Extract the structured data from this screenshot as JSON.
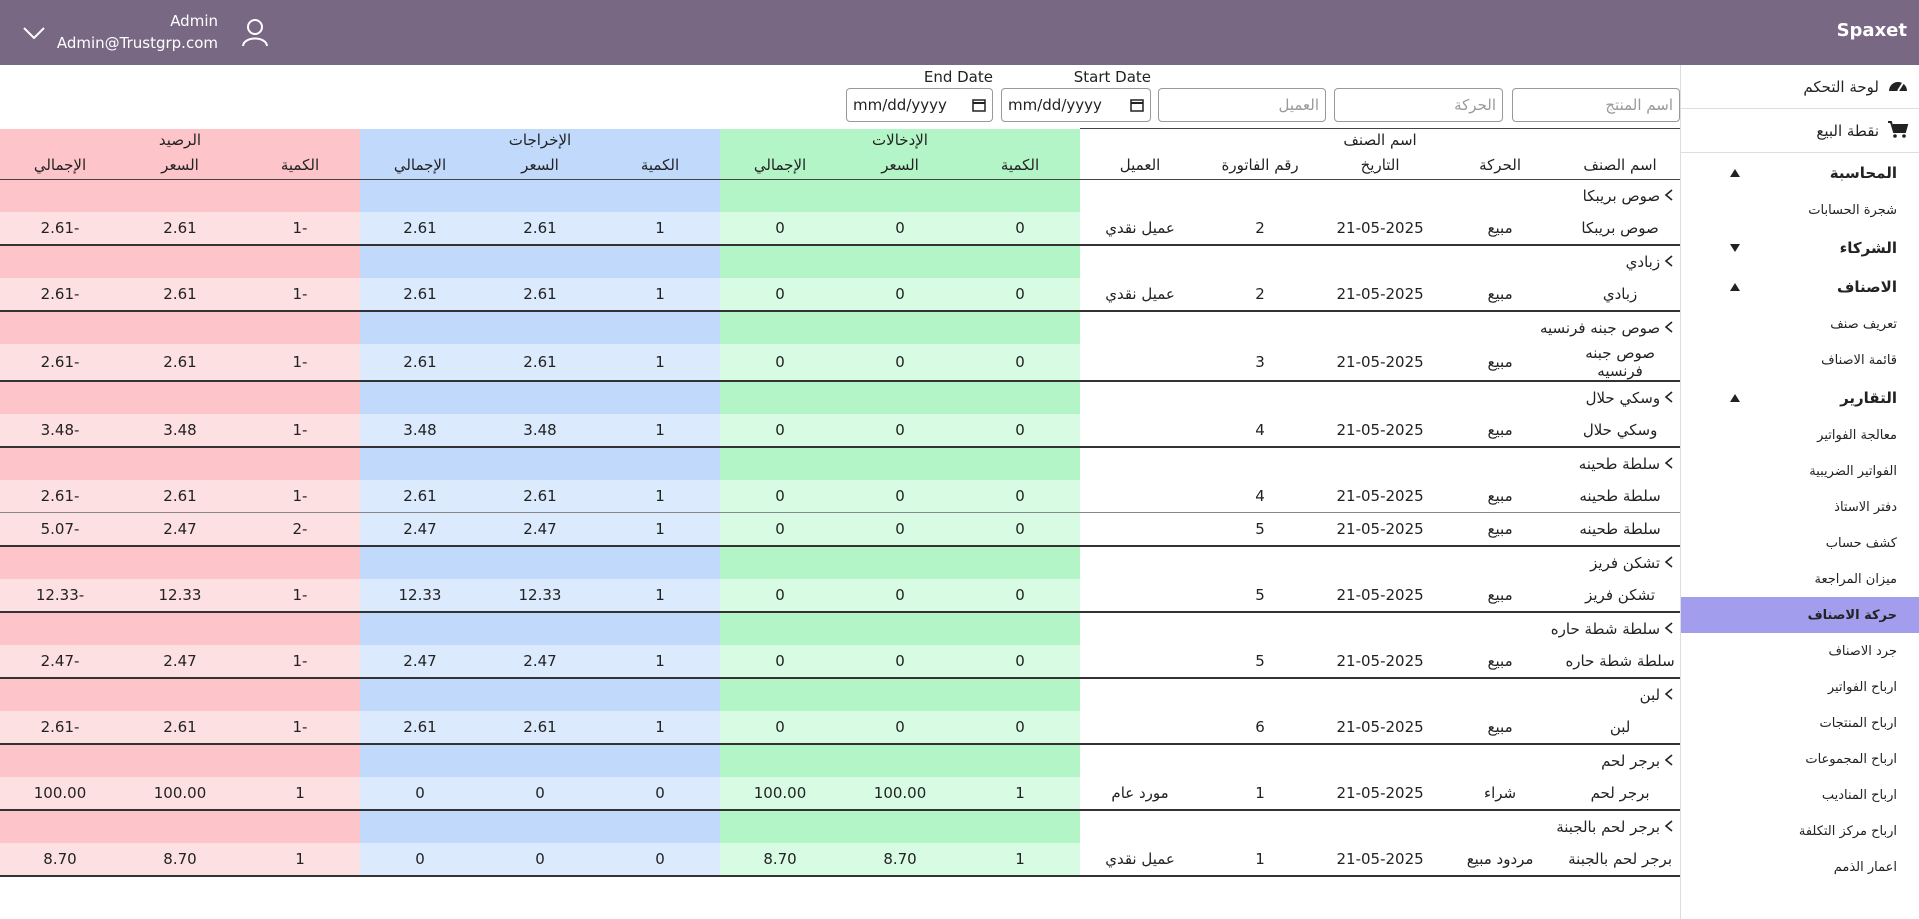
{
  "header": {
    "brand": "Spaxet",
    "user": "Admin",
    "email": "Admin@Trustgrp.com"
  },
  "sidebar": {
    "top": [
      "لوحة التحكم",
      "نقطة البيع"
    ],
    "sections": [
      {
        "title": "المحاسبة",
        "open": true,
        "items": [
          {
            "label": "شجرة الحسابات"
          }
        ]
      },
      {
        "title": "الشركاء",
        "open": false,
        "items": []
      },
      {
        "title": "الاصناف",
        "open": true,
        "items": [
          {
            "label": "تعريف صنف"
          },
          {
            "label": "قائمة الاصناف"
          }
        ]
      },
      {
        "title": "التقارير",
        "open": true,
        "items": [
          {
            "label": "معالجة الفواتير"
          },
          {
            "label": "الفواتير الضريبية"
          },
          {
            "label": "دفتر الاستاذ"
          },
          {
            "label": "كشف حساب"
          },
          {
            "label": "ميزان المراجعة"
          },
          {
            "label": "حركة الاصناف",
            "active": true
          },
          {
            "label": "جرد الاصناف"
          },
          {
            "label": "ارباح الفواتير"
          },
          {
            "label": "ارباح المنتجات"
          },
          {
            "label": "ارباح المجموعات"
          },
          {
            "label": "ارباح المناديب"
          },
          {
            "label": "ارباح مركز التكلفة"
          },
          {
            "label": "اعمار الذمم"
          }
        ]
      }
    ]
  },
  "filters": {
    "product": "اسم المنتج",
    "movement": "الحركة",
    "customer": "العميل",
    "start_label": "Start Date",
    "end_label": "End Date",
    "date_placeholder": "mm/dd/yyyy"
  },
  "table": {
    "group_header": "اسم الصنف",
    "sections": [
      "الإدخالات",
      "الإخراجات",
      "الرصيد"
    ],
    "columns": [
      "اسم الصنف",
      "الحركة",
      "التاريخ",
      "رقم الفاتورة",
      "العميل",
      "الكمية",
      "السعر",
      "الإجمالي",
      "الكمية",
      "السعر",
      "الإجمالي",
      "الكمية",
      "السعر",
      "الإجمالي"
    ],
    "groups": [
      {
        "name": "صوص بريبكا",
        "rows": [
          {
            "cells": [
              "صوص بريبكا",
              "مبيع",
              "21-05-2025",
              "2",
              "عميل نقدي",
              "0",
              "0",
              "0",
              "1",
              "2.61",
              "2.61",
              "1-",
              "2.61",
              "2.61-"
            ]
          }
        ]
      },
      {
        "name": "زبادي",
        "rows": [
          {
            "cells": [
              "زبادي",
              "مبيع",
              "21-05-2025",
              "2",
              "عميل نقدي",
              "0",
              "0",
              "0",
              "1",
              "2.61",
              "2.61",
              "1-",
              "2.61",
              "2.61-"
            ]
          }
        ]
      },
      {
        "name": "صوص جبنه فرنسيه",
        "rows": [
          {
            "cells": [
              "صوص جبنه فرنسيه",
              "مبيع",
              "21-05-2025",
              "3",
              null,
              "0",
              "0",
              "0",
              "1",
              "2.61",
              "2.61",
              "1-",
              "2.61",
              "2.61-"
            ]
          }
        ]
      },
      {
        "name": "وسكي حلال",
        "rows": [
          {
            "cells": [
              "وسكي حلال",
              "مبيع",
              "21-05-2025",
              "4",
              null,
              "0",
              "0",
              "0",
              "1",
              "3.48",
              "3.48",
              "1-",
              "3.48",
              "3.48-"
            ]
          }
        ]
      },
      {
        "name": "سلطة طحينه",
        "rows": [
          {
            "cells": [
              "سلطة طحينه",
              "مبيع",
              "21-05-2025",
              "4",
              null,
              "0",
              "0",
              "0",
              "1",
              "2.61",
              "2.61",
              "1-",
              "2.61",
              "2.61-"
            ]
          },
          {
            "cells": [
              "سلطة طحينه",
              "مبيع",
              "21-05-2025",
              "5",
              null,
              "0",
              "0",
              "0",
              "1",
              "2.47",
              "2.47",
              "2-",
              "2.47",
              "5.07-"
            ]
          }
        ]
      },
      {
        "name": "تشكن فريز",
        "rows": [
          {
            "cells": [
              "تشكن فريز",
              "مبيع",
              "21-05-2025",
              "5",
              null,
              "0",
              "0",
              "0",
              "1",
              "12.33",
              "12.33",
              "1-",
              "12.33",
              "12.33-"
            ]
          }
        ]
      },
      {
        "name": "سلطة شطة حاره",
        "rows": [
          {
            "cells": [
              "سلطة شطة حاره",
              "مبيع",
              "21-05-2025",
              "5",
              null,
              "0",
              "0",
              "0",
              "1",
              "2.47",
              "2.47",
              "1-",
              "2.47",
              "2.47-"
            ]
          }
        ]
      },
      {
        "name": "لبن",
        "rows": [
          {
            "cells": [
              "لبن",
              "مبيع",
              "21-05-2025",
              "6",
              null,
              "0",
              "0",
              "0",
              "1",
              "2.61",
              "2.61",
              "1-",
              "2.61",
              "2.61-"
            ]
          }
        ]
      },
      {
        "name": "برجر لحم",
        "rows": [
          {
            "cells": [
              "برجر لحم",
              "شراء",
              "21-05-2025",
              "1",
              "مورد عام",
              "1",
              "100.00",
              "100.00",
              "0",
              "0",
              "0",
              "1",
              "100.00",
              "100.00"
            ]
          }
        ]
      },
      {
        "name": "برجر لحم بالجبنة",
        "rows": [
          {
            "cells": [
              "برجر لحم بالجبنة",
              "مردود مبيع",
              "21-05-2025",
              "1",
              "عميل نقدي",
              "1",
              "8.70",
              "8.70",
              "0",
              "0",
              "0",
              "1",
              "8.70",
              "8.70"
            ]
          }
        ]
      }
    ]
  }
}
